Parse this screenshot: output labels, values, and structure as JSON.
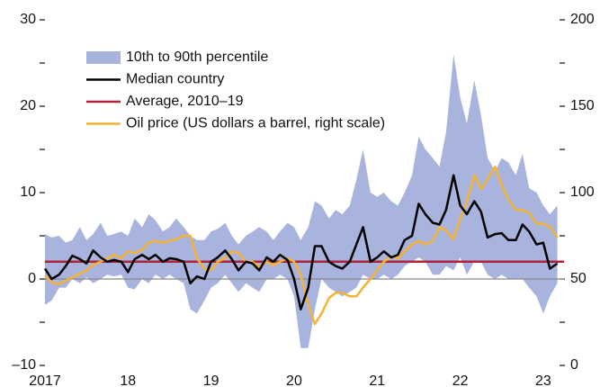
{
  "chart_data": {
    "type": "line",
    "x": [
      2017.0,
      2017.08,
      2017.17,
      2017.25,
      2017.33,
      2017.42,
      2017.5,
      2017.58,
      2017.67,
      2017.75,
      2017.83,
      2017.92,
      2018.0,
      2018.08,
      2018.17,
      2018.25,
      2018.33,
      2018.42,
      2018.5,
      2018.58,
      2018.67,
      2018.75,
      2018.83,
      2018.92,
      2019.0,
      2019.08,
      2019.17,
      2019.25,
      2019.33,
      2019.42,
      2019.5,
      2019.58,
      2019.67,
      2019.75,
      2019.83,
      2019.92,
      2020.0,
      2020.08,
      2020.17,
      2020.25,
      2020.33,
      2020.42,
      2020.5,
      2020.58,
      2020.67,
      2020.75,
      2020.83,
      2020.92,
      2021.0,
      2021.08,
      2021.17,
      2021.25,
      2021.33,
      2021.42,
      2021.5,
      2021.58,
      2021.67,
      2021.75,
      2021.83,
      2021.92,
      2022.0,
      2022.08,
      2022.17,
      2022.25,
      2022.33,
      2022.42,
      2022.5,
      2022.58,
      2022.67,
      2022.75,
      2022.83,
      2022.92,
      2023.0,
      2023.08,
      2023.17
    ],
    "xlim": [
      2017,
      2023.25
    ],
    "xticks": [
      {
        "value": 2017,
        "label": "2017"
      },
      {
        "value": 2018,
        "label": "18"
      },
      {
        "value": 2019,
        "label": "19"
      },
      {
        "value": 2020,
        "label": "20"
      },
      {
        "value": 2021,
        "label": "21"
      },
      {
        "value": 2022,
        "label": "22"
      },
      {
        "value": 2023,
        "label": "23"
      }
    ],
    "ylim": [
      -10,
      30
    ],
    "yticks": [
      {
        "value": -10,
        "label": "–10"
      },
      0,
      10,
      20,
      30
    ],
    "yticks_minor": [
      -5,
      5,
      15,
      25
    ],
    "y2lim": [
      0,
      200
    ],
    "y2ticks": [
      0,
      50,
      100,
      150,
      200
    ],
    "y2ticks_minor": [
      25,
      75,
      125,
      175
    ],
    "series": [
      {
        "name": "10th to 90th percentile",
        "color": "#a9b4de",
        "upper": [
          5.2,
          4.8,
          5.0,
          4.2,
          4.5,
          6.0,
          4.5,
          5.2,
          6.5,
          5.0,
          5.2,
          5.5,
          5.0,
          7.0,
          6.0,
          7.5,
          6.8,
          5.5,
          6.0,
          7.0,
          6.0,
          5.0,
          4.5,
          4.5,
          5.5,
          5.8,
          6.5,
          5.0,
          4.0,
          5.0,
          5.5,
          6.0,
          5.5,
          4.5,
          5.5,
          6.5,
          6.0,
          4.5,
          6.0,
          9.0,
          8.5,
          7.0,
          8.0,
          7.5,
          8.5,
          11.5,
          15.0,
          10.0,
          9.5,
          10.0,
          9.0,
          8.5,
          10.0,
          12.0,
          16.5,
          15.0,
          14.0,
          13.0,
          17.0,
          26.0,
          21.0,
          18.0,
          23.0,
          19.0,
          14.0,
          12.5,
          14.0,
          13.5,
          12.0,
          14.5,
          10.5,
          10.0,
          8.5,
          7.5,
          8.5
        ],
        "lower": [
          -3.0,
          -2.5,
          -1.0,
          -1.0,
          0.0,
          -0.5,
          0.2,
          -0.5,
          0.0,
          0.5,
          0.3,
          0.5,
          -1.0,
          -1.2,
          0.0,
          -0.5,
          0.5,
          0.0,
          0.5,
          0.0,
          -0.5,
          -3.5,
          -4.0,
          -2.5,
          -1.0,
          -0.5,
          0.5,
          -0.5,
          -1.5,
          -0.5,
          -1.0,
          -1.5,
          0.0,
          0.0,
          0.5,
          0.0,
          -2.0,
          -8.0,
          -8.0,
          -3.5,
          0.0,
          -1.0,
          -1.5,
          -2.0,
          -1.5,
          -1.0,
          0.5,
          0.0,
          0.0,
          0.5,
          0.0,
          0.5,
          1.5,
          2.0,
          2.5,
          2.0,
          0.5,
          0.5,
          1.5,
          1.0,
          2.5,
          0.5,
          2.0,
          2.0,
          0.5,
          0.0,
          0.5,
          0.0,
          0.0,
          0.0,
          -1.0,
          -2.0,
          -4.0,
          -2.0,
          -0.5
        ]
      },
      {
        "name": "Median country",
        "color": "#000000",
        "values": [
          1.2,
          0.0,
          0.5,
          1.5,
          2.7,
          2.3,
          1.8,
          3.3,
          2.5,
          2.0,
          2.2,
          2.0,
          0.8,
          2.3,
          2.8,
          2.3,
          2.8,
          2.0,
          2.4,
          2.3,
          2.0,
          -0.5,
          0.3,
          0.0,
          2.0,
          2.5,
          3.3,
          2.3,
          1.0,
          2.0,
          1.8,
          1.0,
          2.5,
          2.0,
          2.8,
          2.2,
          0.0,
          -3.5,
          -1.0,
          3.8,
          3.8,
          2.0,
          1.5,
          1.2,
          2.0,
          4.0,
          6.0,
          2.0,
          2.5,
          3.2,
          2.5,
          2.8,
          4.5,
          5.0,
          8.7,
          7.5,
          6.5,
          6.3,
          8.0,
          12.0,
          8.5,
          7.5,
          9.0,
          7.8,
          4.8,
          5.2,
          5.3,
          4.5,
          4.5,
          6.3,
          5.5,
          4.0,
          4.2,
          1.2,
          1.8
        ]
      },
      {
        "name": "Average, 2010–19",
        "color": "#b0223a",
        "value": 2.0
      },
      {
        "name": "Oil price (US dollars a barrel, right scale)",
        "color": "#f5b335",
        "axis": "y2",
        "values": [
          52,
          48,
          47,
          49,
          51,
          53,
          55,
          58,
          60,
          62,
          64,
          62,
          66,
          65,
          67,
          71,
          72,
          71,
          72,
          73,
          75,
          75,
          62,
          56,
          55,
          60,
          62,
          66,
          65,
          60,
          60,
          57,
          60,
          58,
          60,
          62,
          60,
          52,
          35,
          24,
          30,
          39,
          42,
          42,
          40,
          40,
          45,
          50,
          55,
          60,
          63,
          62,
          66,
          70,
          72,
          70,
          72,
          80,
          78,
          73,
          85,
          95,
          110,
          102,
          108,
          115,
          104,
          96,
          90,
          90,
          88,
          82,
          82,
          80,
          74
        ]
      }
    ]
  }
}
